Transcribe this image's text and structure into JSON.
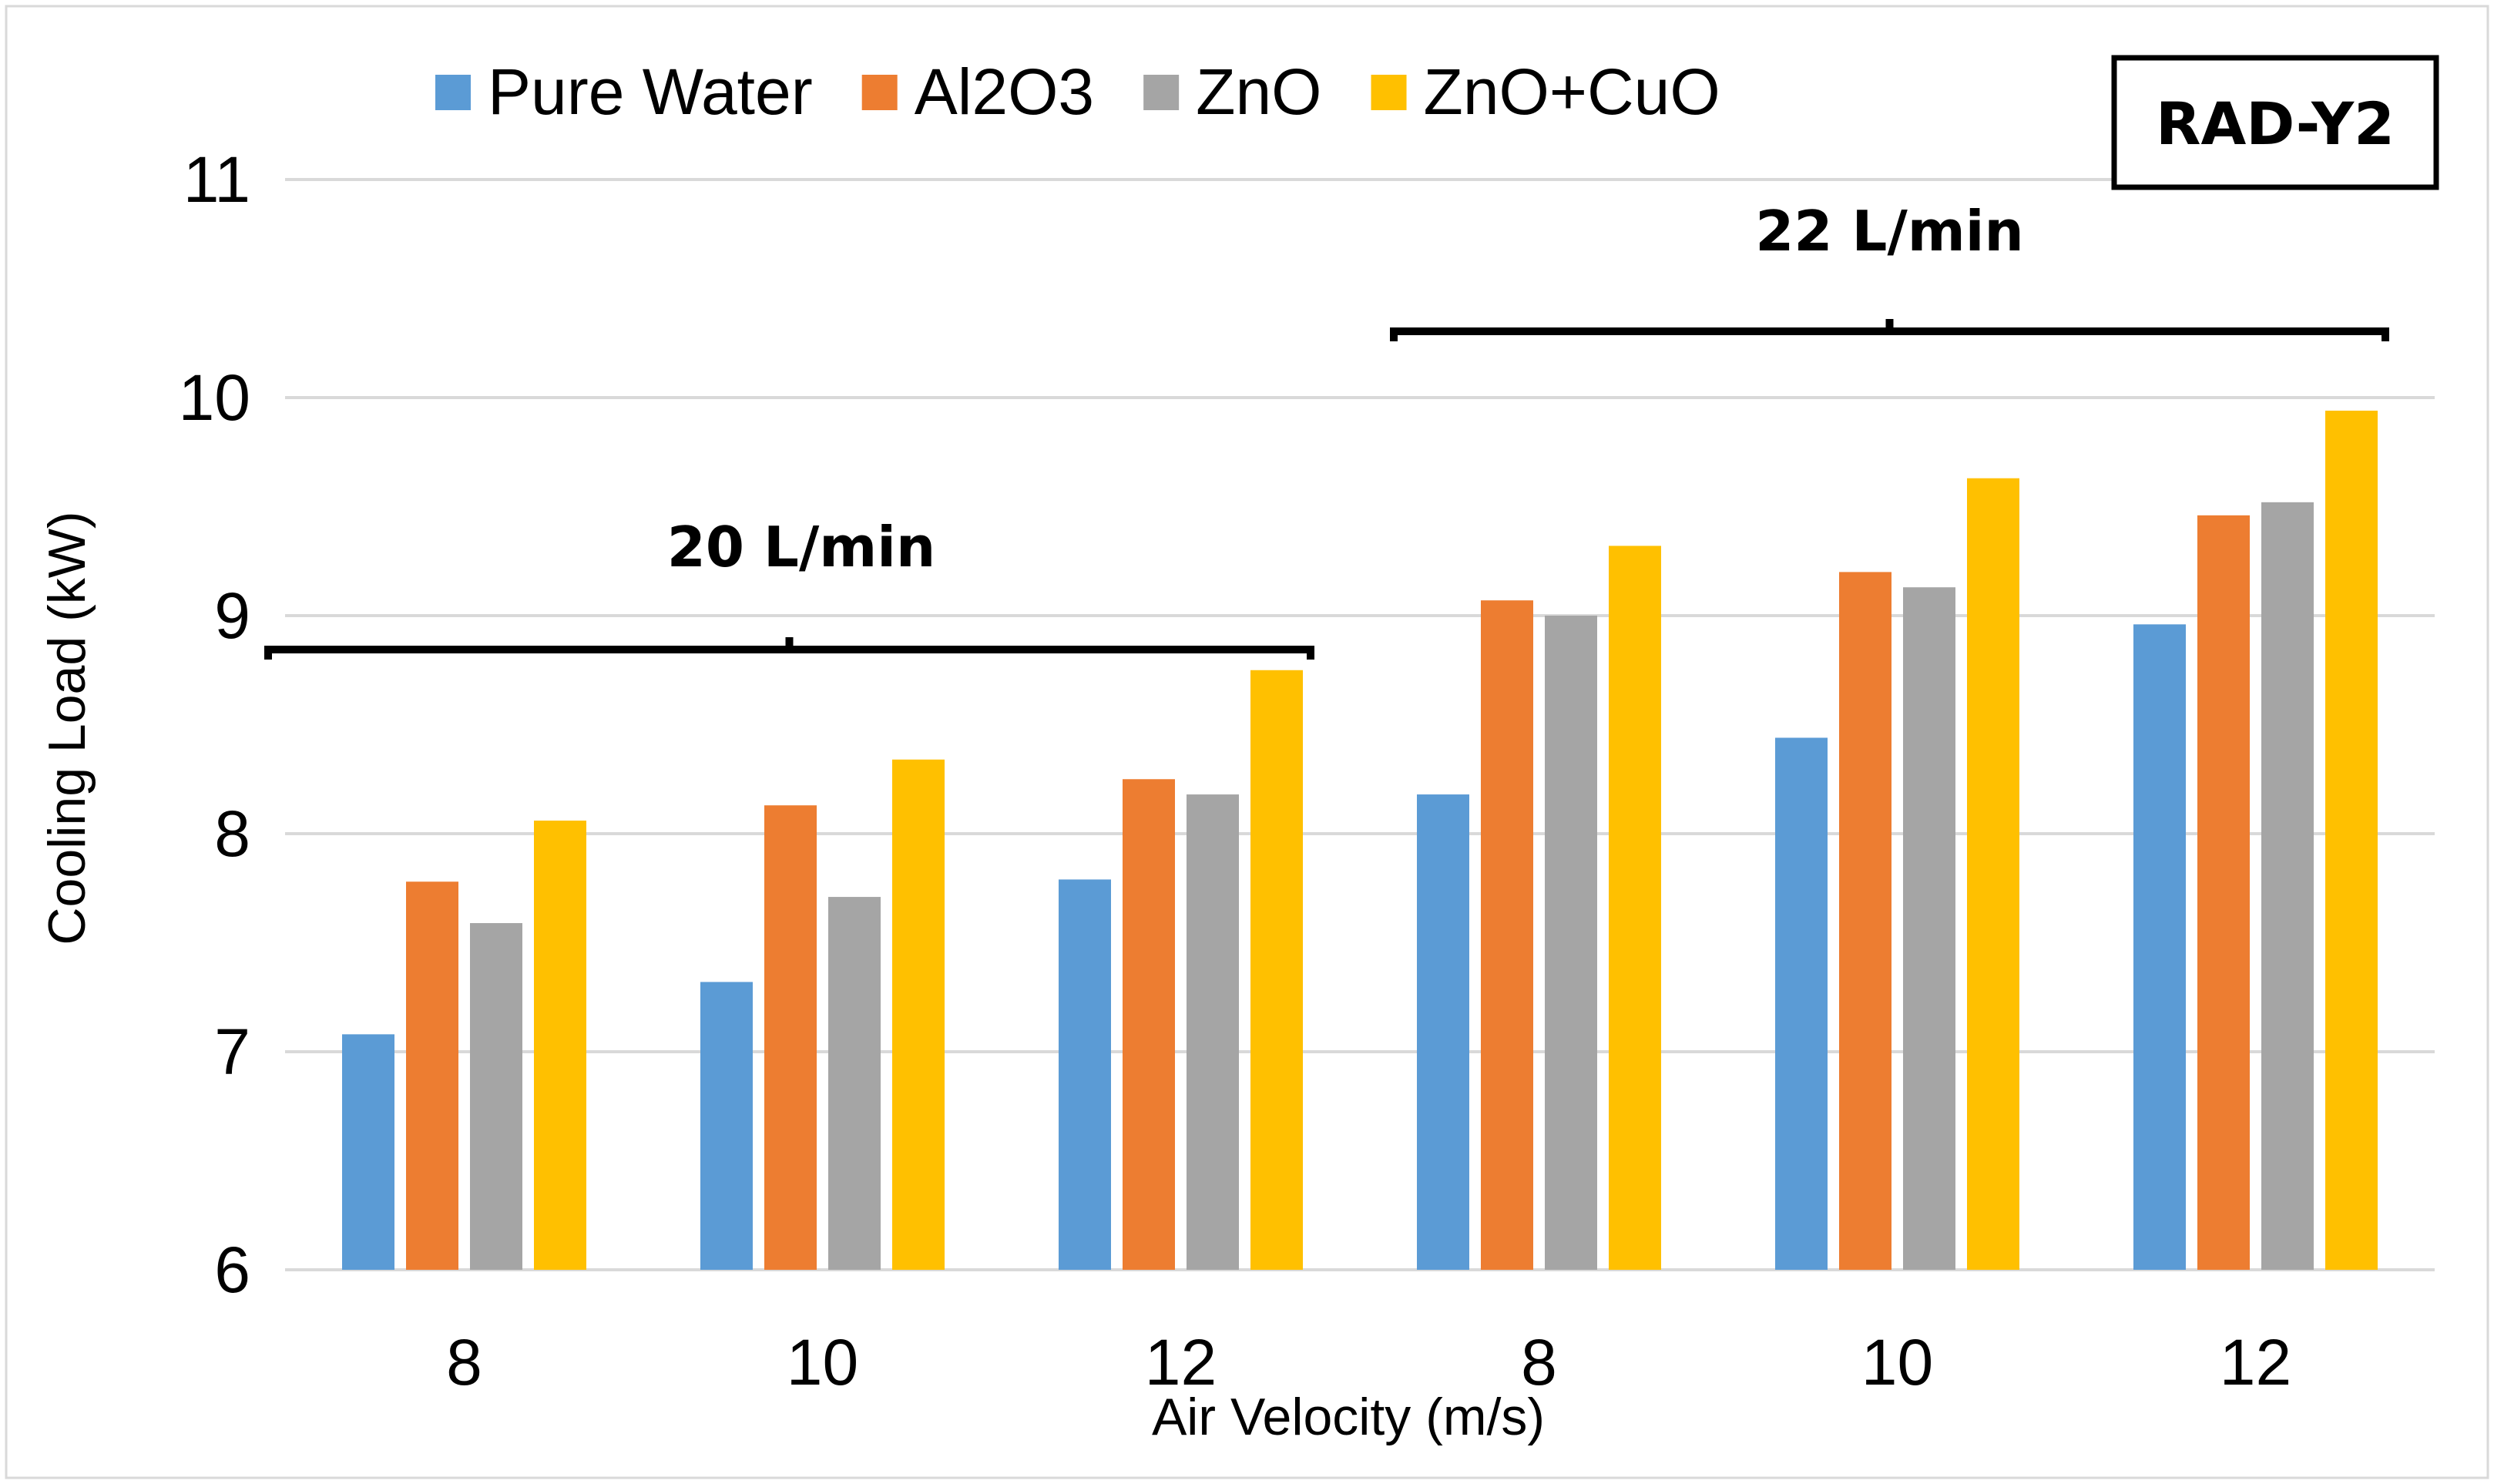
{
  "chart_data": {
    "type": "bar",
    "title": "",
    "xlabel": "Air Velocity (m/s)",
    "ylabel": "Cooling Load (kW)",
    "ylim": [
      6,
      11
    ],
    "yticks": [
      "6",
      "7",
      "8",
      "9",
      "10",
      "11"
    ],
    "categories": [
      "8",
      "10",
      "12",
      "8",
      "10",
      "12"
    ],
    "series": [
      {
        "name": "Pure Water",
        "color": "#5B9BD5",
        "values": [
          7.08,
          7.32,
          7.79,
          8.18,
          8.44,
          8.96
        ]
      },
      {
        "name": "Al2O3",
        "color": "#ED7D31",
        "values": [
          7.78,
          8.13,
          8.25,
          9.07,
          9.2,
          9.46
        ]
      },
      {
        "name": "ZnO",
        "color": "#A5A5A5",
        "values": [
          7.59,
          7.71,
          8.18,
          9.0,
          9.13,
          9.52
        ]
      },
      {
        "name": "ZnO+CuO",
        "color": "#FFC000",
        "values": [
          8.06,
          8.34,
          8.75,
          9.32,
          9.63,
          9.94
        ]
      }
    ],
    "grid": true,
    "legend_position": "top",
    "badge": "RAD-Y2",
    "flow_groups": [
      {
        "label": "20 L/min",
        "category_start": 0,
        "category_end": 2
      },
      {
        "label": "22 L/min",
        "category_start": 3,
        "category_end": 5
      }
    ]
  }
}
